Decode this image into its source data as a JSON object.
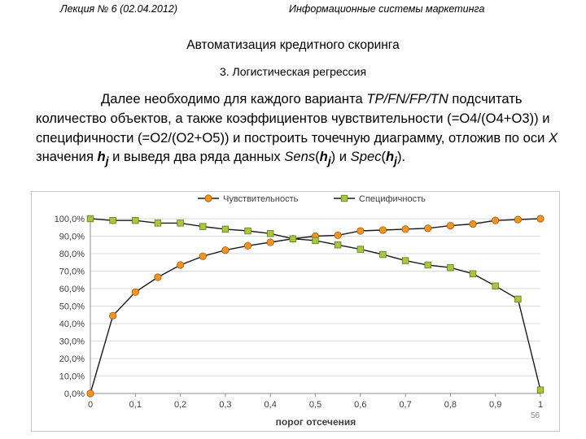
{
  "header": {
    "left": "Лекция № 6 (02.04.2012)",
    "right": "Информационные системы маркетинга"
  },
  "title": "Автоматизация кредитного скоринга",
  "subtitle": "3. Логистическая регрессия",
  "paragraph": {
    "t1": "Далее необходимо для каждого варианта ",
    "t2": "TP/FN/FP/TN",
    "t3": " подсчитать количество объектов, а также коэффициентов чувствительности (=O4/(O4+O3)) и специфичности (=O2/(O2+O5)) и построить точечную диаграмму, отложив по оси ",
    "t4": "X",
    "t5": " значения ",
    "t6": "h",
    "t7": "j",
    "t8": " и выведя два ряда данных ",
    "t9": "Sens",
    "t10": "(",
    "t11": "h",
    "t12": "j",
    "t13": ") и ",
    "t14": "Spec",
    "t15": "(",
    "t16": "h",
    "t17": "j",
    "t18": ")."
  },
  "page_number": "56",
  "chart_data": {
    "type": "line",
    "xlabel": "порог отсечения",
    "ylabel": "",
    "xlim": [
      0,
      1
    ],
    "ylim": [
      0,
      1
    ],
    "x_ticks": [
      0,
      0.1,
      0.2,
      0.3,
      0.4,
      0.5,
      0.6,
      0.7,
      0.8,
      0.9,
      1
    ],
    "x_tick_labels": [
      "0",
      "0,1",
      "0,2",
      "0,3",
      "0,4",
      "0,5",
      "0,6",
      "0,7",
      "0,8",
      "0,9",
      "1"
    ],
    "y_ticks": [
      0,
      0.1,
      0.2,
      0.3,
      0.4,
      0.5,
      0.6,
      0.7,
      0.8,
      0.9,
      1
    ],
    "y_tick_labels": [
      "0,0%",
      "10,0%",
      "20,0%",
      "30,0%",
      "40,0%",
      "50,0%",
      "60,0%",
      "70,0%",
      "80,0%",
      "90,0%",
      "100,0%"
    ],
    "grid": "horizontal",
    "legend_position": "top",
    "x": [
      0,
      0.05,
      0.1,
      0.15,
      0.2,
      0.25,
      0.3,
      0.35,
      0.4,
      0.45,
      0.5,
      0.55,
      0.6,
      0.65,
      0.7,
      0.75,
      0.8,
      0.85,
      0.9,
      0.95,
      1
    ],
    "series": [
      {
        "name": "Чувствительность",
        "color": "#f7931e",
        "marker": "circle",
        "values": [
          0,
          0.445,
          0.58,
          0.665,
          0.735,
          0.785,
          0.82,
          0.845,
          0.865,
          0.885,
          0.9,
          0.905,
          0.93,
          0.935,
          0.94,
          0.945,
          0.96,
          0.97,
          0.99,
          0.995,
          1.0
        ]
      },
      {
        "name": "Специфичность",
        "color": "#a8c73a",
        "marker": "square",
        "values": [
          1.0,
          0.99,
          0.99,
          0.975,
          0.975,
          0.955,
          0.94,
          0.93,
          0.915,
          0.885,
          0.875,
          0.85,
          0.825,
          0.795,
          0.76,
          0.735,
          0.72,
          0.685,
          0.615,
          0.54,
          0.02
        ]
      }
    ]
  }
}
